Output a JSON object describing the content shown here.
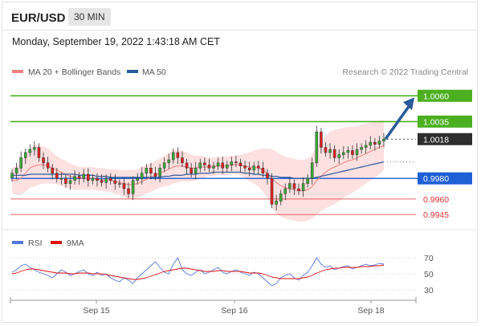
{
  "header": {
    "symbol": "EUR/USD",
    "interval": "30 MIN",
    "datetime": "Monday, September 19, 2022 1:43:18 AM CET"
  },
  "colors": {
    "ma20": "#f08080",
    "ma50": "#2a5a9a",
    "bollinger_fill": "#fde0e0",
    "candle_up": "#3aaa35",
    "candle_down": "#e02020",
    "resistance": "#4caf20",
    "support_blue": "#1e5fd6",
    "support_red": "#e03030",
    "current": "#2d2d2d",
    "rsi": "#5577dd",
    "rsi_ma": "#dd1111",
    "arrow": "#2a5a9a"
  },
  "chart_data": [
    {
      "type": "candlestick",
      "title": "",
      "legend": [
        {
          "name": "MA 20 + Bollinger Bands",
          "color": "#f08080"
        },
        {
          "name": "MA 50",
          "color": "#2a5a9a"
        }
      ],
      "credit": "Research © 2022 Trading Central",
      "x_ticks": [
        "Sep 15",
        "Sep 16",
        "Sep 18"
      ],
      "ylim": [
        0.9935,
        1.0075
      ],
      "levels": [
        {
          "label": "1.0060",
          "value": 1.006,
          "kind": "resistance"
        },
        {
          "label": "1.0035",
          "value": 1.0035,
          "kind": "resistance"
        },
        {
          "label": "1.0018",
          "value": 1.0018,
          "kind": "current"
        },
        {
          "label": "0.9980",
          "value": 0.998,
          "kind": "support_blue"
        },
        {
          "label": "0.9960",
          "value": 0.996,
          "kind": "support_red"
        },
        {
          "label": "0.9945",
          "value": 0.9945,
          "kind": "support_red"
        }
      ],
      "closes": [
        0.9985,
        0.999,
        1.0,
        1.0005,
        1.0008,
        1.001,
        1.0,
        0.9995,
        0.999,
        0.9985,
        0.998,
        0.998,
        0.9975,
        0.9978,
        0.9982,
        0.998,
        0.9984,
        0.9978,
        0.998,
        0.9978,
        0.9976,
        0.998,
        0.9978,
        0.9975,
        0.9975,
        0.997,
        0.9965,
        0.9978,
        0.998,
        0.9985,
        0.999,
        0.9985,
        0.9982,
        0.999,
        0.9995,
        0.9998,
        1.0005,
        1.0,
        0.9995,
        0.999,
        0.9985,
        0.999,
        0.9995,
        0.9993,
        0.999,
        0.9992,
        0.9995,
        0.999,
        0.9993,
        0.9996,
        0.9995,
        0.9992,
        0.999,
        0.9988,
        0.9992,
        0.999,
        0.9985,
        0.998,
        0.9955,
        0.9958,
        0.9965,
        0.997,
        0.9975,
        0.997,
        0.9968,
        0.9975,
        0.998,
        0.9995,
        1.0025,
        1.001,
        1.0005,
        1.0008,
        1.0,
        1.0003,
        1.0005,
        1.0007,
        1.0003,
        1.0008,
        1.001,
        1.0012,
        1.0015,
        1.0013,
        1.0016,
        1.0018
      ],
      "ma20": [
        0.9978,
        0.9978,
        0.998,
        0.9985,
        0.999,
        0.9992,
        0.9993,
        0.9993,
        0.9992,
        0.999,
        0.9988,
        0.9986,
        0.9984,
        0.9982,
        0.9981,
        0.998,
        0.998,
        0.998,
        0.998,
        0.9979,
        0.9979,
        0.9978,
        0.9978,
        0.9977,
        0.9976,
        0.9975,
        0.9974,
        0.9974,
        0.9975,
        0.9977,
        0.9979,
        0.9981,
        0.9983,
        0.9985,
        0.9987,
        0.9989,
        0.9991,
        0.9992,
        0.9992,
        0.9991,
        0.999,
        0.999,
        0.9991,
        0.9991,
        0.9991,
        0.9991,
        0.9992,
        0.9992,
        0.9992,
        0.9993,
        0.9993,
        0.9993,
        0.9992,
        0.9991,
        0.9991,
        0.999,
        0.9988,
        0.9985,
        0.998,
        0.9976,
        0.9973,
        0.9971,
        0.997,
        0.9969,
        0.9968,
        0.9968,
        0.9969,
        0.9972,
        0.9978,
        0.9982,
        0.9986,
        0.9989,
        0.9991,
        0.9993,
        0.9995,
        0.9997,
        0.9998,
        1.0,
        1.0002,
        1.0004,
        1.0006,
        1.0008,
        1.001,
        1.0012
      ],
      "bb_width": [
        0.0012,
        0.0014,
        0.0016,
        0.0018,
        0.0019,
        0.002,
        0.0019,
        0.0018,
        0.0017,
        0.0015,
        0.0014,
        0.0013,
        0.0013,
        0.0012,
        0.0012,
        0.0011,
        0.0011,
        0.0011,
        0.0011,
        0.0011,
        0.0011,
        0.0011,
        0.0011,
        0.0012,
        0.0012,
        0.0013,
        0.0014,
        0.0014,
        0.0014,
        0.0014,
        0.0014,
        0.0014,
        0.0014,
        0.0014,
        0.0015,
        0.0016,
        0.0016,
        0.0016,
        0.0015,
        0.0014,
        0.0013,
        0.0012,
        0.0011,
        0.001,
        0.0009,
        0.0009,
        0.0009,
        0.0009,
        0.0009,
        0.0009,
        0.0009,
        0.001,
        0.0012,
        0.0014,
        0.0016,
        0.0018,
        0.0021,
        0.0024,
        0.0028,
        0.003,
        0.003,
        0.003,
        0.003,
        0.003,
        0.003,
        0.003,
        0.003,
        0.0031,
        0.0033,
        0.0034,
        0.0035,
        0.0036,
        0.0036,
        0.0035,
        0.0034,
        0.0033,
        0.0032,
        0.0031,
        0.003,
        0.0029,
        0.0028,
        0.0027,
        0.0026,
        0.0024
      ],
      "ma50": [
        0.9983,
        0.9983,
        0.9983,
        0.9983,
        0.9984,
        0.9984,
        0.9984,
        0.9984,
        0.9984,
        0.9984,
        0.9984,
        0.9984,
        0.9984,
        0.9984,
        0.9984,
        0.9983,
        0.9983,
        0.9983,
        0.9983,
        0.9982,
        0.9982,
        0.9982,
        0.9981,
        0.9981,
        0.9981,
        0.9981,
        0.9981,
        0.9981,
        0.9981,
        0.9981,
        0.9981,
        0.9981,
        0.9981,
        0.9981,
        0.9982,
        0.9982,
        0.9983,
        0.9983,
        0.9983,
        0.9984,
        0.9984,
        0.9984,
        0.9985,
        0.9985,
        0.9985,
        0.9986,
        0.9986,
        0.9986,
        0.9986,
        0.9986,
        0.9986,
        0.9986,
        0.9985,
        0.9985,
        0.9984,
        0.9984,
        0.9983,
        0.9983,
        0.9982,
        0.9982,
        0.9981,
        0.9981,
        0.9981,
        0.998,
        0.998,
        0.998,
        0.998,
        0.998,
        0.9981,
        0.9982,
        0.9983,
        0.9984,
        0.9985,
        0.9986,
        0.9987,
        0.9988,
        0.9989,
        0.999,
        0.9991,
        0.9992,
        0.9993,
        0.9994,
        0.9995,
        0.9996
      ],
      "forecast_arrow": {
        "from": 1.0018,
        "to": 1.006
      }
    },
    {
      "type": "line",
      "title": "",
      "legend": [
        {
          "name": "RSI",
          "color": "#5577dd"
        },
        {
          "name": "9MA",
          "color": "#dd1111"
        }
      ],
      "y_ticks": [
        70,
        50,
        30
      ],
      "ylim": [
        25,
        75
      ],
      "rsi": [
        52,
        55,
        60,
        62,
        58,
        55,
        52,
        50,
        48,
        45,
        50,
        55,
        52,
        48,
        50,
        53,
        55,
        50,
        48,
        52,
        48,
        50,
        45,
        42,
        40,
        45,
        42,
        38,
        45,
        50,
        55,
        60,
        65,
        58,
        52,
        50,
        62,
        70,
        55,
        50,
        48,
        52,
        55,
        50,
        52,
        55,
        58,
        52,
        50,
        53,
        55,
        52,
        50,
        48,
        52,
        50,
        45,
        40,
        35,
        38,
        45,
        48,
        50,
        45,
        42,
        48,
        52,
        60,
        70,
        62,
        58,
        60,
        55,
        57,
        59,
        60,
        56,
        58,
        60,
        62,
        60,
        61,
        63,
        62
      ],
      "rsi_ma": [
        50,
        51,
        53,
        55,
        56,
        56,
        55,
        54,
        53,
        52,
        51,
        51,
        51,
        50,
        50,
        51,
        51,
        51,
        50,
        50,
        50,
        49,
        48,
        47,
        46,
        45,
        44,
        43,
        43,
        44,
        45,
        47,
        49,
        51,
        53,
        54,
        55,
        56,
        57,
        57,
        56,
        55,
        54,
        53,
        53,
        53,
        54,
        54,
        53,
        53,
        53,
        53,
        52,
        51,
        51,
        51,
        50,
        48,
        46,
        45,
        44,
        44,
        44,
        44,
        44,
        45,
        46,
        48,
        51,
        53,
        55,
        56,
        57,
        57,
        58,
        58,
        58,
        58,
        59,
        59,
        59,
        60,
        60,
        61
      ]
    }
  ]
}
